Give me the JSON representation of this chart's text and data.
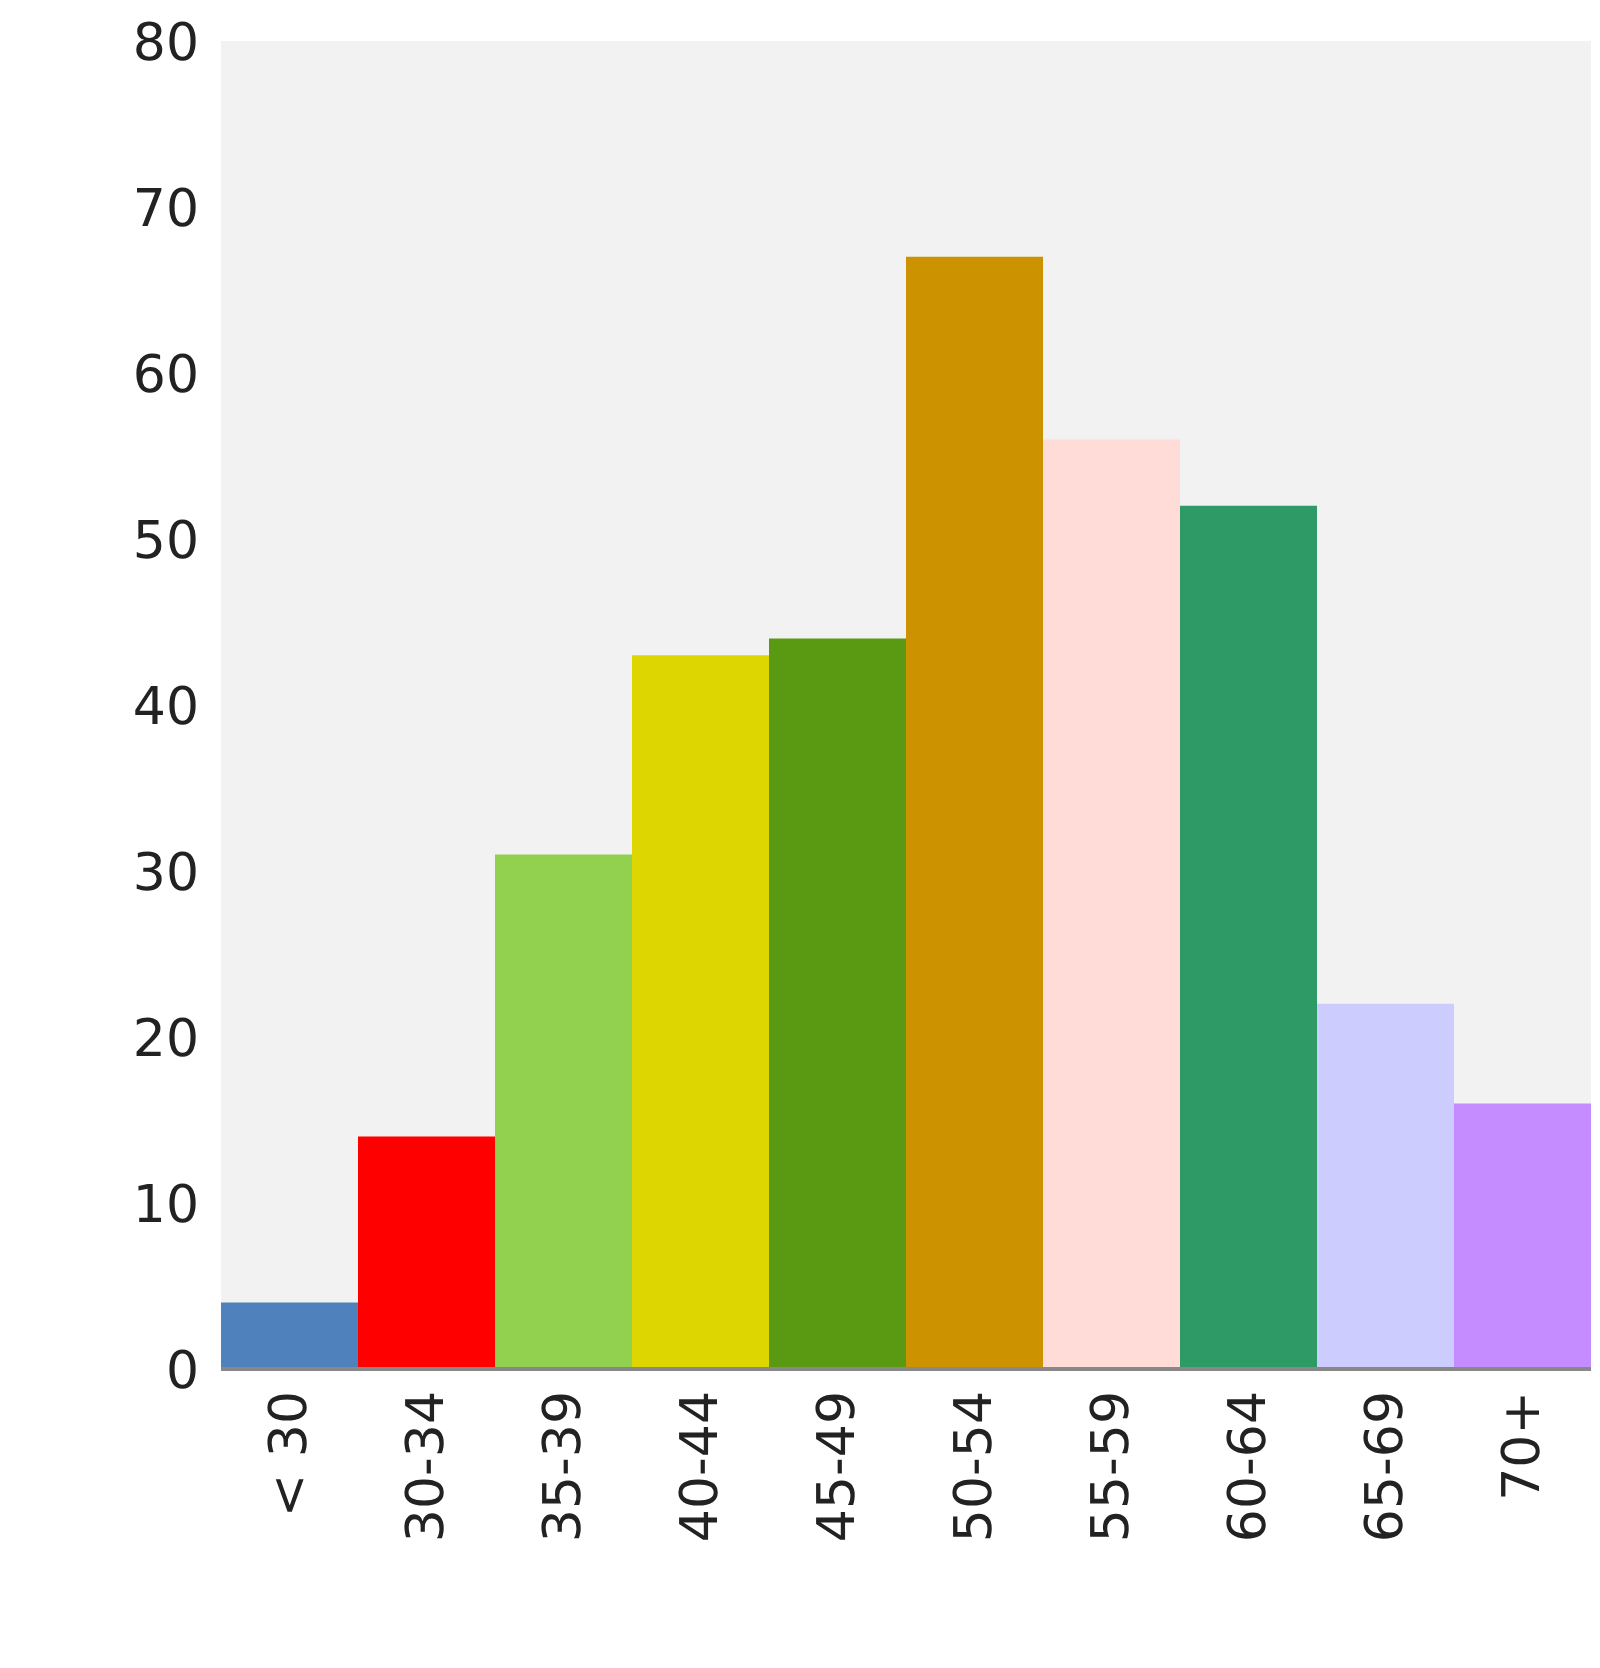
{
  "chart_data": {
    "type": "bar",
    "categories": [
      "< 30",
      "30-34",
      "35-39",
      "40-44",
      "45-49",
      "50-54",
      "55-59",
      "60-64",
      "65-69",
      "70+"
    ],
    "values": [
      4,
      14,
      31,
      43,
      44,
      67,
      56,
      52,
      22,
      16
    ],
    "colors": [
      "#4f81bd",
      "#ff0000",
      "#92d050",
      "#ddd600",
      "#5a9a12",
      "#cc9200",
      "#ffdcd8",
      "#2e9a66",
      "#ccccff",
      "#c58cff"
    ],
    "ylim": [
      0,
      80
    ],
    "yticks": [
      0,
      10,
      20,
      30,
      40,
      50,
      60,
      70,
      80
    ],
    "grid": false
  }
}
